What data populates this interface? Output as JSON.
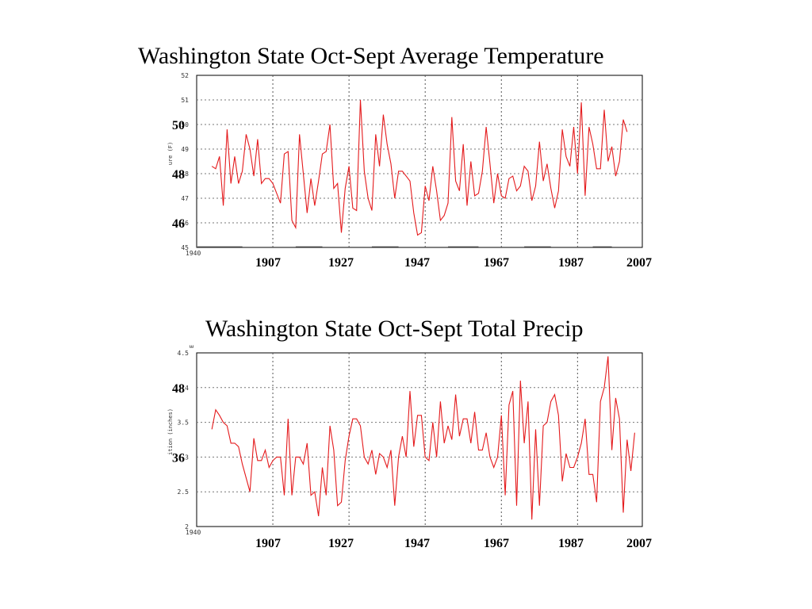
{
  "chart_data": [
    {
      "type": "line",
      "title": "Washington State Oct-Sept Average Temperature",
      "xlabel": "",
      "ylabel": "ure (F)",
      "ylim": [
        45,
        52
      ],
      "xlim": [
        1891,
        2008
      ],
      "inner_yticks": [
        "45",
        "46",
        "47",
        "48",
        "49",
        "50",
        "51",
        "52"
      ],
      "corner_label": "1940",
      "overlay_yticks": [
        {
          "label": "50",
          "value": 50
        },
        {
          "label": "48",
          "value": 48
        },
        {
          "label": "46",
          "value": 46
        }
      ],
      "overlay_xticks": [
        "1907",
        "1927",
        "1947",
        "1967",
        "1987",
        "2007"
      ],
      "grid_x": [
        1911,
        1931,
        1951,
        1971,
        1991
      ],
      "base_dashes": [
        [
          1891,
          1903
        ],
        [
          1917,
          1924
        ],
        [
          1937,
          1944
        ],
        [
          1957,
          1965
        ],
        [
          1977,
          1984
        ],
        [
          1995,
          2000
        ]
      ],
      "series": [
        {
          "values": [
            [
              1895,
              48.3
            ],
            [
              1896,
              48.2
            ],
            [
              1897,
              48.7
            ],
            [
              1898,
              46.7
            ],
            [
              1899,
              49.8
            ],
            [
              1900,
              47.6
            ],
            [
              1901,
              48.7
            ],
            [
              1902,
              47.6
            ],
            [
              1903,
              48.1
            ],
            [
              1904,
              49.6
            ],
            [
              1905,
              49.0
            ],
            [
              1906,
              47.9
            ],
            [
              1907,
              49.4
            ],
            [
              1908,
              47.6
            ],
            [
              1909,
              47.8
            ],
            [
              1910,
              47.8
            ],
            [
              1911,
              47.6
            ],
            [
              1912,
              47.2
            ],
            [
              1913,
              46.8
            ],
            [
              1914,
              48.8
            ],
            [
              1915,
              48.9
            ],
            [
              1916,
              46.1
            ],
            [
              1917,
              45.8
            ],
            [
              1918,
              49.6
            ],
            [
              1919,
              48.0
            ],
            [
              1920,
              46.4
            ],
            [
              1921,
              47.8
            ],
            [
              1922,
              46.7
            ],
            [
              1923,
              47.7
            ],
            [
              1924,
              48.8
            ],
            [
              1925,
              48.9
            ],
            [
              1926,
              50.0
            ],
            [
              1927,
              47.4
            ],
            [
              1928,
              47.6
            ],
            [
              1929,
              45.6
            ],
            [
              1930,
              47.4
            ],
            [
              1931,
              48.3
            ],
            [
              1932,
              46.6
            ],
            [
              1933,
              46.5
            ],
            [
              1934,
              51.0
            ],
            [
              1935,
              48.1
            ],
            [
              1936,
              47.0
            ],
            [
              1937,
              46.5
            ],
            [
              1938,
              49.6
            ],
            [
              1939,
              48.3
            ],
            [
              1940,
              50.4
            ],
            [
              1941,
              49.2
            ],
            [
              1942,
              48.4
            ],
            [
              1943,
              47.0
            ],
            [
              1944,
              48.1
            ],
            [
              1945,
              48.1
            ],
            [
              1946,
              47.9
            ],
            [
              1947,
              47.7
            ],
            [
              1948,
              46.4
            ],
            [
              1949,
              45.5
            ],
            [
              1950,
              45.6
            ],
            [
              1951,
              47.5
            ],
            [
              1952,
              46.9
            ],
            [
              1953,
              48.3
            ],
            [
              1954,
              47.3
            ],
            [
              1955,
              46.1
            ],
            [
              1956,
              46.3
            ],
            [
              1957,
              46.8
            ],
            [
              1958,
              50.3
            ],
            [
              1959,
              47.7
            ],
            [
              1960,
              47.3
            ],
            [
              1961,
              49.2
            ],
            [
              1962,
              46.7
            ],
            [
              1963,
              48.5
            ],
            [
              1964,
              47.1
            ],
            [
              1965,
              47.2
            ],
            [
              1966,
              48.1
            ],
            [
              1967,
              49.9
            ],
            [
              1968,
              48.4
            ],
            [
              1969,
              46.8
            ],
            [
              1970,
              48.0
            ],
            [
              1971,
              47.1
            ],
            [
              1972,
              47.0
            ],
            [
              1973,
              47.8
            ],
            [
              1974,
              47.9
            ],
            [
              1975,
              47.3
            ],
            [
              1976,
              47.5
            ],
            [
              1977,
              48.3
            ],
            [
              1978,
              48.1
            ],
            [
              1979,
              46.9
            ],
            [
              1980,
              47.5
            ],
            [
              1981,
              49.3
            ],
            [
              1982,
              47.7
            ],
            [
              1983,
              48.4
            ],
            [
              1984,
              47.4
            ],
            [
              1985,
              46.6
            ],
            [
              1986,
              47.3
            ],
            [
              1987,
              49.8
            ],
            [
              1988,
              48.7
            ],
            [
              1989,
              48.3
            ],
            [
              1990,
              49.9
            ],
            [
              1991,
              48.0
            ],
            [
              1992,
              50.9
            ],
            [
              1993,
              47.1
            ],
            [
              1994,
              49.9
            ],
            [
              1995,
              49.2
            ],
            [
              1996,
              48.2
            ],
            [
              1997,
              48.2
            ],
            [
              1998,
              50.6
            ],
            [
              1999,
              48.5
            ],
            [
              2000,
              49.1
            ],
            [
              2001,
              47.9
            ],
            [
              2002,
              48.5
            ],
            [
              2003,
              50.2
            ],
            [
              2004,
              49.7
            ]
          ]
        }
      ]
    },
    {
      "type": "line",
      "title": "Washington State Oct-Sept Total Precip",
      "xlabel": "",
      "ylabel": "ition (inches)",
      "ylim": [
        2,
        4.5
      ],
      "xlim": [
        1891,
        2008
      ],
      "inner_yticks": [
        "2",
        "2.5",
        "3",
        "3.5",
        "4",
        "4.5"
      ],
      "corner_label": "1940",
      "top_label": "E",
      "overlay_yticks": [
        {
          "label": "48",
          "value": 4.0
        },
        {
          "label": "36",
          "value": 3.0
        }
      ],
      "overlay_xticks": [
        "1907",
        "1927",
        "1947",
        "1967",
        "1987",
        "2007"
      ],
      "grid_x": [
        1911,
        1931,
        1951,
        1971,
        1991
      ],
      "series": [
        {
          "values": [
            [
              1895,
              3.4
            ],
            [
              1896,
              3.68
            ],
            [
              1897,
              3.6
            ],
            [
              1898,
              3.5
            ],
            [
              1899,
              3.45
            ],
            [
              1900,
              3.2
            ],
            [
              1901,
              3.2
            ],
            [
              1902,
              3.15
            ],
            [
              1903,
              2.9
            ],
            [
              1904,
              2.7
            ],
            [
              1905,
              2.5
            ],
            [
              1906,
              3.27
            ],
            [
              1907,
              2.95
            ],
            [
              1908,
              2.95
            ],
            [
              1909,
              3.1
            ],
            [
              1910,
              2.85
            ],
            [
              1911,
              2.95
            ],
            [
              1912,
              3.0
            ],
            [
              1913,
              3.0
            ],
            [
              1914,
              2.45
            ],
            [
              1915,
              3.55
            ],
            [
              1916,
              2.45
            ],
            [
              1917,
              3.0
            ],
            [
              1918,
              3.0
            ],
            [
              1919,
              2.9
            ],
            [
              1920,
              3.2
            ],
            [
              1921,
              2.45
            ],
            [
              1922,
              2.5
            ],
            [
              1923,
              2.15
            ],
            [
              1924,
              2.85
            ],
            [
              1925,
              2.45
            ],
            [
              1926,
              3.45
            ],
            [
              1927,
              3.1
            ],
            [
              1928,
              2.3
            ],
            [
              1929,
              2.35
            ],
            [
              1930,
              2.95
            ],
            [
              1931,
              3.3
            ],
            [
              1932,
              3.55
            ],
            [
              1933,
              3.55
            ],
            [
              1934,
              3.45
            ],
            [
              1935,
              3.0
            ],
            [
              1936,
              2.9
            ],
            [
              1937,
              3.1
            ],
            [
              1938,
              2.75
            ],
            [
              1939,
              3.05
            ],
            [
              1940,
              3.0
            ],
            [
              1941,
              2.85
            ],
            [
              1942,
              3.1
            ],
            [
              1943,
              2.3
            ],
            [
              1944,
              3.0
            ],
            [
              1945,
              3.3
            ],
            [
              1946,
              3.0
            ],
            [
              1947,
              3.95
            ],
            [
              1948,
              3.15
            ],
            [
              1949,
              3.6
            ],
            [
              1950,
              3.6
            ],
            [
              1951,
              3.0
            ],
            [
              1952,
              2.95
            ],
            [
              1953,
              3.5
            ],
            [
              1954,
              3.0
            ],
            [
              1955,
              3.8
            ],
            [
              1956,
              3.2
            ],
            [
              1957,
              3.45
            ],
            [
              1958,
              3.25
            ],
            [
              1959,
              3.9
            ],
            [
              1960,
              3.3
            ],
            [
              1961,
              3.55
            ],
            [
              1962,
              3.55
            ],
            [
              1963,
              3.2
            ],
            [
              1964,
              3.65
            ],
            [
              1965,
              3.1
            ],
            [
              1966,
              3.1
            ],
            [
              1967,
              3.35
            ],
            [
              1968,
              3.0
            ],
            [
              1969,
              2.85
            ],
            [
              1970,
              3.0
            ],
            [
              1971,
              3.6
            ],
            [
              1972,
              2.45
            ],
            [
              1973,
              3.75
            ],
            [
              1974,
              3.95
            ],
            [
              1975,
              2.3
            ],
            [
              1976,
              4.1
            ],
            [
              1977,
              3.2
            ],
            [
              1978,
              3.8
            ],
            [
              1979,
              2.1
            ],
            [
              1980,
              3.4
            ],
            [
              1981,
              2.3
            ],
            [
              1982,
              3.45
            ],
            [
              1983,
              3.5
            ],
            [
              1984,
              3.8
            ],
            [
              1985,
              3.9
            ],
            [
              1986,
              3.6
            ],
            [
              1987,
              2.65
            ],
            [
              1988,
              3.05
            ],
            [
              1989,
              2.85
            ],
            [
              1990,
              2.85
            ],
            [
              1991,
              3.0
            ],
            [
              1992,
              3.2
            ],
            [
              1993,
              3.55
            ],
            [
              1994,
              2.75
            ],
            [
              1995,
              2.75
            ],
            [
              1996,
              2.35
            ],
            [
              1997,
              3.8
            ],
            [
              1998,
              4.0
            ],
            [
              1999,
              4.45
            ],
            [
              2000,
              3.1
            ],
            [
              2001,
              3.85
            ],
            [
              2002,
              3.55
            ],
            [
              2003,
              2.2
            ],
            [
              2004,
              3.25
            ],
            [
              2005,
              2.8
            ],
            [
              2006,
              3.35
            ]
          ]
        }
      ]
    }
  ]
}
